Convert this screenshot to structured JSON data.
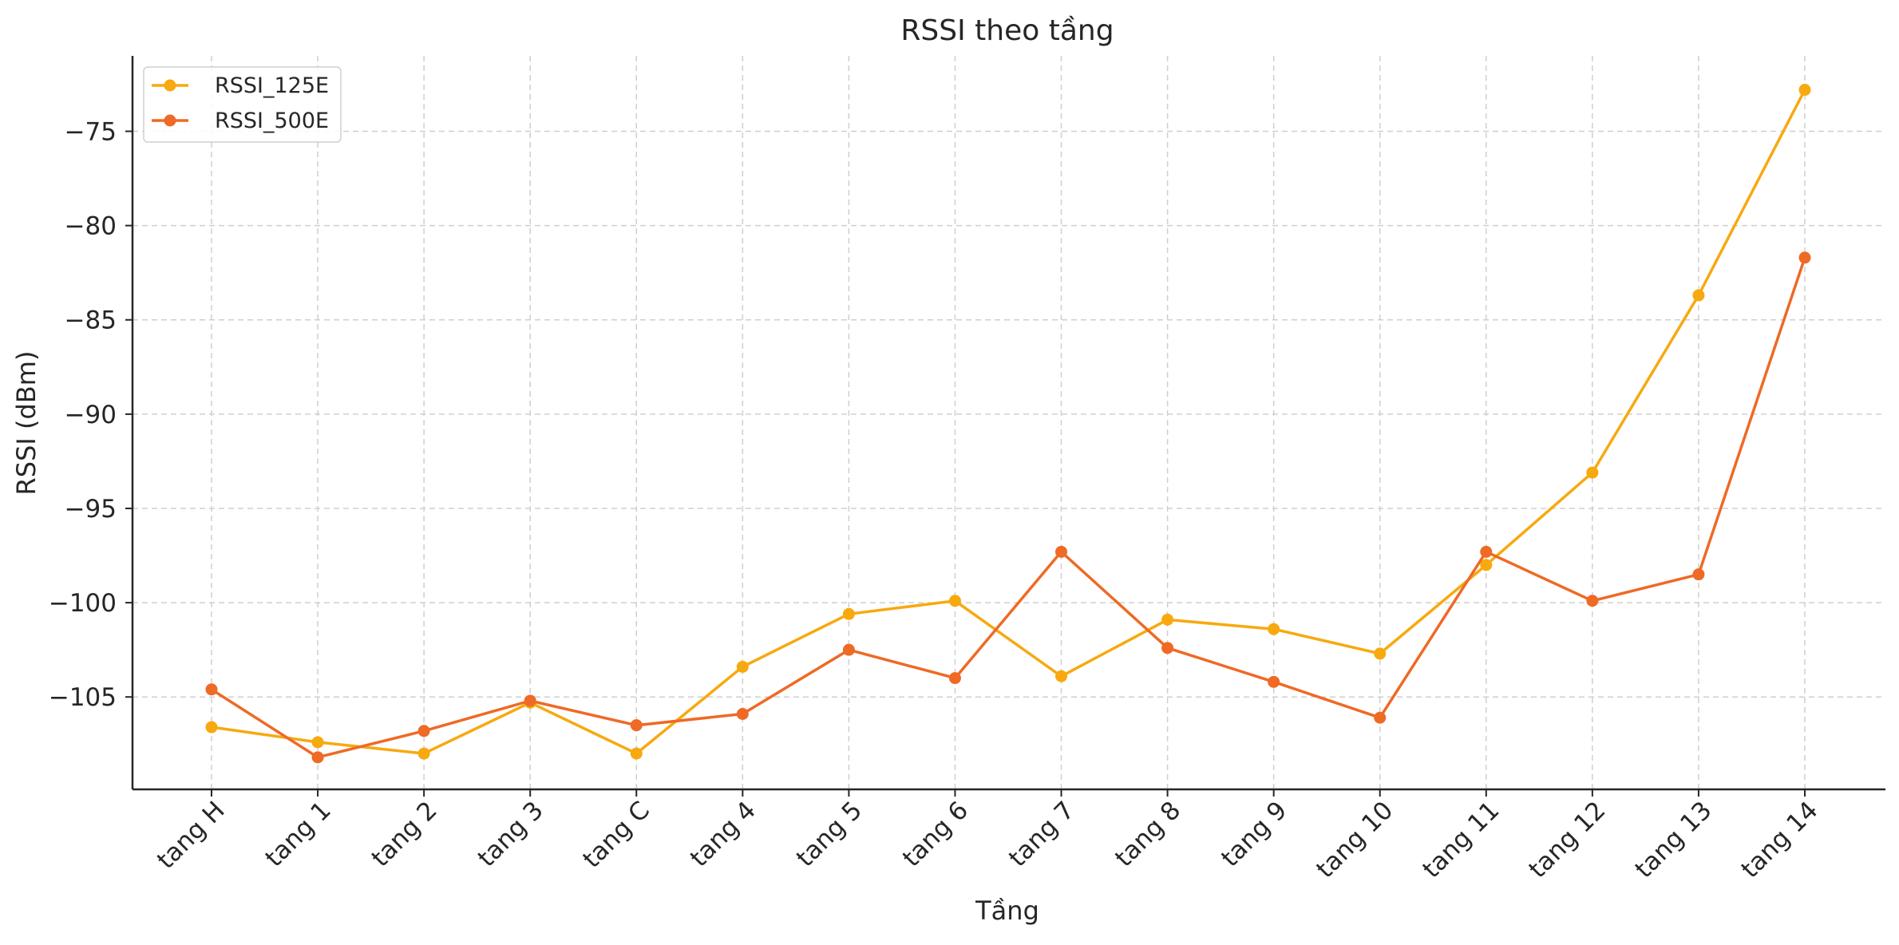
{
  "chart_data": {
    "type": "line",
    "title": "RSSI theo tầng",
    "xlabel": "Tầng",
    "ylabel": "RSSI (dBm)",
    "categories": [
      "tang H",
      "tang 1",
      "tang 2",
      "tang 3",
      "tang C",
      "tang 4",
      "tang 5",
      "tang 6",
      "tang 7",
      "tang 8",
      "tang 9",
      "tang 10",
      "tang 11",
      "tang 12",
      "tang 13",
      "tang 14"
    ],
    "ylim": [
      -109.9,
      -71.0
    ],
    "yticks": [
      -105,
      -100,
      -95,
      -90,
      -85,
      -80,
      -75
    ],
    "ytick_labels": [
      "−105",
      "−100",
      "−95",
      "−90",
      "−85",
      "−80",
      "−75"
    ],
    "grid": true,
    "legend_position": "top-left",
    "series": [
      {
        "name": "RSSI_125E",
        "color": "#F7A90F",
        "values": [
          -106.6,
          -107.4,
          -108.0,
          -105.3,
          -108.0,
          -103.4,
          -100.6,
          -99.9,
          -103.9,
          -100.9,
          -101.4,
          -102.7,
          -98.0,
          -93.1,
          -83.7,
          -72.8
        ]
      },
      {
        "name": "RSSI_500E",
        "color": "#EE6A25",
        "values": [
          -104.6,
          -108.2,
          -106.8,
          -105.2,
          -106.5,
          -105.9,
          -102.5,
          -104.0,
          -97.3,
          -102.4,
          -104.2,
          -106.1,
          -97.3,
          -99.9,
          -98.5,
          -81.7
        ]
      }
    ]
  }
}
